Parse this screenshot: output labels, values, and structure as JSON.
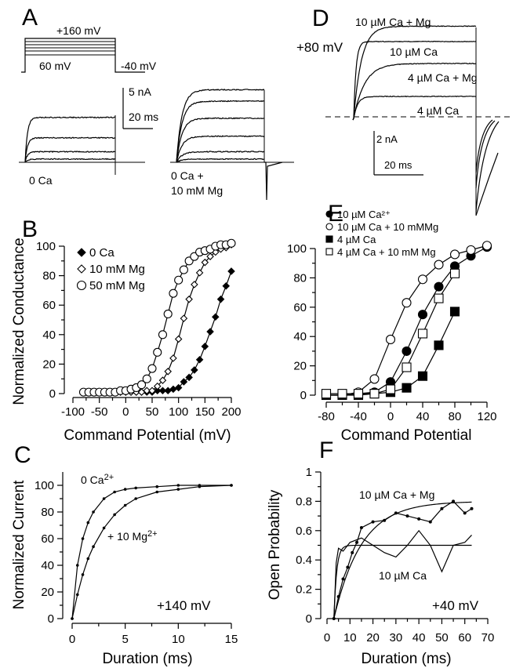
{
  "panels": {
    "A": "A",
    "B": "B",
    "C": "C",
    "D": "D",
    "E": "E",
    "F": "F"
  },
  "chart_data": [
    {
      "panel": "A",
      "type": "line",
      "protocol_labels": {
        "top": "+160 mV",
        "bottom": "60 mV",
        "tail": "-40 mV"
      },
      "scale_bar": {
        "current": "5 nA",
        "time": "20 ms"
      },
      "series": [
        {
          "name": "0 Ca",
          "name_lines": [
            "0 Ca"
          ],
          "steady_levels_nA": [
            5.5,
            3.0,
            1.3,
            0.4
          ]
        },
        {
          "name": "0 Ca + 10 mM Mg",
          "name_lines": [
            "0 Ca +",
            "10 mM Mg"
          ],
          "steady_levels_nA": [
            8.9,
            7.5,
            5.4,
            3.2,
            1.3,
            0.4
          ]
        }
      ]
    },
    {
      "panel": "B",
      "type": "scatter",
      "xlabel": "Command Potential (mV)",
      "ylabel": "Normalized Conductance",
      "xlim": [
        -100,
        200
      ],
      "ylim": [
        0,
        100
      ],
      "xticks": [
        "-100",
        "-50",
        "0",
        "50",
        "100",
        "150",
        "200"
      ],
      "yticks": [
        "0",
        "20",
        "40",
        "60",
        "80",
        "100"
      ],
      "legend_position": "top-left",
      "x": [
        -80,
        -70,
        -60,
        -50,
        -40,
        -30,
        -20,
        -10,
        0,
        10,
        20,
        30,
        40,
        50,
        60,
        70,
        80,
        90,
        100,
        110,
        120,
        130,
        140,
        150,
        160,
        170,
        180,
        190,
        200
      ],
      "series": [
        {
          "name": "0 Ca",
          "marker": "filled-diamond",
          "values": [
            1,
            1,
            1,
            1,
            1,
            1,
            1,
            1,
            1,
            1,
            1,
            1,
            1,
            1,
            2,
            2,
            2,
            3,
            4,
            8,
            11,
            16,
            23,
            32,
            42,
            52,
            64,
            73,
            83
          ]
        },
        {
          "name": "10 mM Mg",
          "marker": "open-diamond",
          "values": [
            1,
            1,
            1,
            1,
            1,
            1,
            1,
            1,
            1,
            1,
            1,
            1,
            2,
            2,
            5,
            9,
            15,
            24,
            37,
            51,
            64,
            74,
            82,
            89,
            93,
            96,
            98,
            99,
            101
          ]
        },
        {
          "name": "50 mM Mg",
          "marker": "open-circle",
          "values": [
            1,
            1,
            1,
            1,
            1,
            1,
            1,
            2,
            2,
            3,
            4,
            6,
            10,
            17,
            28,
            40,
            54,
            68,
            77,
            84,
            90,
            93,
            96,
            97,
            98,
            100,
            101,
            101,
            102
          ]
        }
      ]
    },
    {
      "panel": "C",
      "type": "line",
      "xlabel": "Duration (ms)",
      "ylabel": "Normalized Current",
      "xlim": [
        0,
        15
      ],
      "ylim": [
        0,
        110
      ],
      "xticks": [
        "0",
        "5",
        "10",
        "15"
      ],
      "yticks": [
        "0",
        "20",
        "40",
        "60",
        "80",
        "100"
      ],
      "annotation": "+140 mV",
      "x": [
        0,
        0.5,
        1,
        1.5,
        2,
        3,
        4,
        5,
        6,
        8,
        10,
        12,
        15
      ],
      "series": [
        {
          "name": "0 Ca",
          "label_base": "0 Ca",
          "label_sup": "2+",
          "values": [
            0,
            40,
            60,
            72,
            80,
            90,
            95,
            97,
            98,
            99,
            100,
            100,
            100
          ]
        },
        {
          "name": "+ 10 Mg",
          "label_base": "+ 10 Mg",
          "label_sup": "2+",
          "values": [
            0,
            18,
            33,
            45,
            54,
            68,
            78,
            85,
            90,
            95,
            97,
            99,
            100
          ]
        }
      ]
    },
    {
      "panel": "D",
      "type": "line",
      "annotation": "+80 mV",
      "scale_bar": {
        "current": "2 nA",
        "time": "20 ms"
      },
      "series": [
        {
          "name": "10 µM  Ca + Mg",
          "steady_level_nA": 4.2
        },
        {
          "name": "10 µM Ca",
          "steady_level_nA": 3.5
        },
        {
          "name": "4 µM Ca + Mg",
          "steady_level_nA": 2.5
        },
        {
          "name": "4 µM Ca",
          "steady_level_nA": 1.0
        }
      ]
    },
    {
      "panel": "E",
      "type": "scatter",
      "xlabel": "Command Potential",
      "ylabel": "",
      "xlim": [
        -80,
        120
      ],
      "ylim": [
        0,
        100
      ],
      "xticks": [
        "-80",
        "-40",
        "0",
        "40",
        "80",
        "120"
      ],
      "yticks": [
        "0",
        "20",
        "40",
        "60",
        "80",
        "100"
      ],
      "legend_position": "top-left",
      "x": [
        -80,
        -60,
        -40,
        -20,
        0,
        20,
        40,
        60,
        80,
        100,
        120
      ],
      "series": [
        {
          "name": "10 µM Ca²⁺",
          "marker": "filled-circle",
          "values": [
            0,
            0,
            1,
            2,
            9,
            30,
            55,
            74,
            88,
            95,
            101
          ]
        },
        {
          "name": "10 µM Ca + 10 mMMg",
          "marker": "open-circle",
          "values": [
            0,
            0,
            2,
            11,
            38,
            63,
            79,
            89,
            96,
            99,
            102
          ]
        },
        {
          "name": "4 µM Ca",
          "marker": "filled-square",
          "values": [
            0,
            0,
            0,
            1,
            2,
            5,
            13,
            34,
            57,
            null,
            null
          ]
        },
        {
          "name": "4 µM Ca + 10 mM Mg",
          "marker": "open-square",
          "values": [
            1,
            1,
            1,
            1,
            4,
            19,
            42,
            66,
            83,
            null,
            null
          ]
        }
      ]
    },
    {
      "panel": "F",
      "type": "line",
      "xlabel": "Duration (ms)",
      "ylabel": "Open Probability",
      "xlim": [
        0,
        70
      ],
      "ylim": [
        0,
        1
      ],
      "xticks": [
        "0",
        "10",
        "20",
        "30",
        "40",
        "50",
        "60",
        "70"
      ],
      "yticks": [
        "0",
        "0.2",
        "0.4",
        "0.6",
        "0.8",
        "1"
      ],
      "annotation": "+40 mV",
      "series": [
        {
          "name": "10 µM Ca + Mg",
          "fit_plateau": 0.8,
          "x": [
            3,
            5,
            7,
            9,
            11,
            13,
            15,
            20,
            25,
            30,
            35,
            40,
            45,
            50,
            55,
            60,
            63
          ],
          "values": [
            0,
            0.15,
            0.27,
            0.35,
            0.45,
            0.52,
            0.62,
            0.66,
            0.67,
            0.72,
            0.7,
            0.68,
            0.66,
            0.75,
            0.8,
            0.72,
            0.75
          ]
        },
        {
          "name": "10 µM Ca",
          "fit_plateau": 0.5,
          "x": [
            3,
            4,
            5,
            7,
            10,
            15,
            20,
            25,
            30,
            35,
            40,
            45,
            50,
            55,
            60,
            63
          ],
          "values": [
            0,
            0.38,
            0.48,
            0.46,
            0.52,
            0.55,
            0.5,
            0.45,
            0.42,
            0.5,
            0.6,
            0.5,
            0.32,
            0.5,
            0.52,
            0.57
          ]
        }
      ]
    }
  ]
}
